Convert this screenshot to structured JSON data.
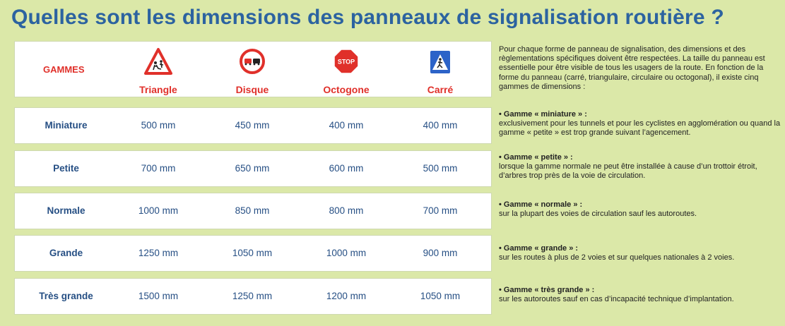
{
  "title": "Quelles sont les dimensions des panneaux de signalisation routière ?",
  "table": {
    "header_label": "GAMMES",
    "columns": [
      {
        "name": "Triangle",
        "icon": "triangle-warning-sign-icon"
      },
      {
        "name": "Disque",
        "icon": "disc-no-overtaking-sign-icon"
      },
      {
        "name": "Octogone",
        "icon": "octagon-stop-sign-icon",
        "sign_text": "STOP"
      },
      {
        "name": "Carré",
        "icon": "square-crosswalk-sign-icon"
      }
    ],
    "rows": [
      {
        "label": "Miniature",
        "values": [
          "500 mm",
          "450 mm",
          "400 mm",
          "400 mm"
        ]
      },
      {
        "label": "Petite",
        "values": [
          "700 mm",
          "650 mm",
          "600 mm",
          "500 mm"
        ]
      },
      {
        "label": "Normale",
        "values": [
          "1000 mm",
          "850 mm",
          "800 mm",
          "700 mm"
        ]
      },
      {
        "label": "Grande",
        "values": [
          "1250 mm",
          "1050 mm",
          "1000 mm",
          "900 mm"
        ]
      },
      {
        "label": "Très grande",
        "values": [
          "1500 mm",
          "1250 mm",
          "1200 mm",
          "1050 mm"
        ]
      }
    ]
  },
  "intro": "Pour chaque forme de panneau de signalisation, des dimensions et des règlementations spécifiques doivent être respectées. La taille du panneau est essentielle pour être visible de tous les usagers de la route. En fonction de la forme du panneau (carré, triangulaire, circulaire ou octogonal), il existe cinq gammes de dimensions :",
  "notes": [
    {
      "title": "• Gamme « miniature » :",
      "text": "exclusivement pour les tunnels et pour les cyclistes en agglomération ou quand la gamme « petite » est trop grande suivant l’agencement."
    },
    {
      "title": "• Gamme « petite » :",
      "text": "lorsque la gamme normale ne peut être installée à cause d’un trottoir étroit, d’arbres trop près de la voie de circulation."
    },
    {
      "title": "• Gamme « normale » :",
      "text": "sur la plupart des voies de circulation sauf les autoroutes."
    },
    {
      "title": "• Gamme « grande » :",
      "text": "sur les routes à plus de 2 voies et sur quelques nationales à 2 voies."
    },
    {
      "title": "• Gamme « très grande » :",
      "text": "sur les autoroutes sauf en cas d’incapacité technique d’implantation."
    }
  ],
  "colors": {
    "background": "#dbe8a8",
    "title": "#2c63a0",
    "header_text": "#e0302a",
    "table_text": "#264f84"
  }
}
